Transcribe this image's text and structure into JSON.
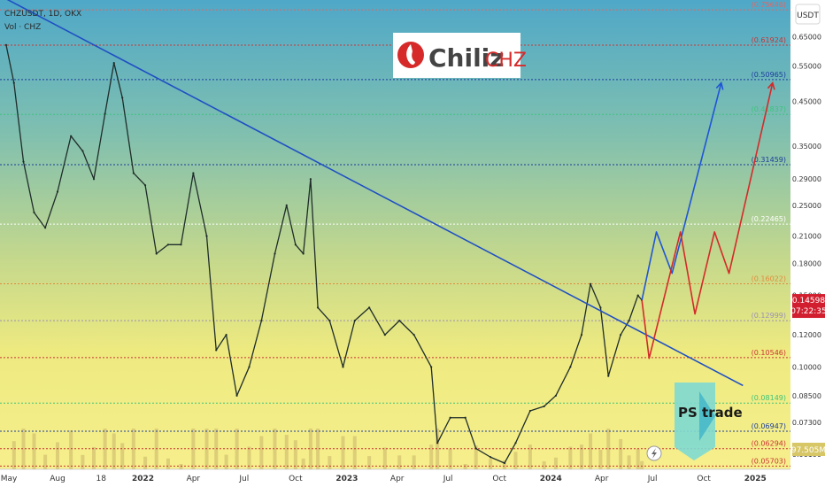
{
  "header": {
    "symbol": "CHZUSDT, 1D, OKX",
    "volume_label": "Vol · CHZ"
  },
  "logo": {
    "brand": "Chiliz",
    "ticker": "CHZ",
    "brand_color": "#d62a2a"
  },
  "currency_button": "USDT",
  "price_axis": {
    "ticks": [
      "0.65000",
      "0.55000",
      "0.45000",
      "0.35000",
      "0.29000",
      "0.25000",
      "0.21000",
      "0.18000",
      "0.15000",
      "0.12000",
      "0.10000",
      "0.08500",
      "0.07300",
      "0.06100"
    ],
    "current_price": "0.14598",
    "countdown": "07:22:35",
    "volume_value": "97.505M"
  },
  "levels": [
    {
      "label": "(0.75646)",
      "value": 0.75646,
      "color": "#e06666",
      "style": "dotted"
    },
    {
      "label": "(0.61924)",
      "value": 0.61924,
      "color": "#cc3333",
      "style": "dotted"
    },
    {
      "label": "(0.50965)",
      "value": 0.50965,
      "color": "#1a3c9c",
      "style": "dotted"
    },
    {
      "label": "(0.41837)",
      "value": 0.41837,
      "color": "#3cc47c",
      "style": "dotted"
    },
    {
      "label": "(0.31459)",
      "value": 0.31459,
      "color": "#1a3c9c",
      "style": "dotted"
    },
    {
      "label": "(0.22465)",
      "value": 0.22465,
      "color": "#ffffff",
      "style": "dotted"
    },
    {
      "label": "(0.16022)",
      "value": 0.16022,
      "color": "#e08a3c",
      "style": "dotted"
    },
    {
      "label": "(0.12999)",
      "value": 0.12999,
      "color": "#9a8fb4",
      "style": "dotted"
    },
    {
      "label": "(0.10546)",
      "value": 0.10546,
      "color": "#cc3333",
      "style": "dotted"
    },
    {
      "label": "(0.08149)",
      "value": 0.08149,
      "color": "#3cc47c",
      "style": "dotted"
    },
    {
      "label": "(0.06947)",
      "value": 0.06947,
      "color": "#1a3c9c",
      "style": "dotted"
    },
    {
      "label": "(0.06294)",
      "value": 0.06294,
      "color": "#cc3333",
      "style": "dotted"
    },
    {
      "label": "(0.05703)",
      "value": 0.05703,
      "color": "#cc3333",
      "style": "dotted"
    }
  ],
  "time_axis": {
    "labels": [
      "May",
      "Aug",
      "18",
      "2022",
      "Apr",
      "Jul",
      "Oct",
      "2023",
      "Apr",
      "Jul",
      "Oct",
      "2024",
      "Apr",
      "Jul",
      "Oct",
      "2025"
    ]
  },
  "watermark": {
    "text": "PS trade"
  },
  "chart_data": {
    "type": "line",
    "title": "CHZUSDT, 1D, OKX",
    "xlabel": "",
    "ylabel": "",
    "y_scale": "log",
    "ylim": [
      0.056,
      0.8
    ],
    "x_ticks": [
      "May",
      "Aug",
      "18",
      "2022",
      "Apr",
      "Jul",
      "Oct",
      "2023",
      "Apr",
      "Jul",
      "Oct",
      "2024",
      "Apr",
      "Jul",
      "Oct",
      "2025"
    ],
    "series": [
      {
        "name": "",
        "role": "price",
        "color": "#1f2d2a",
        "points": [
          [
            "2021-05-01",
            0.62
          ],
          [
            "2021-05-15",
            0.5
          ],
          [
            "2021-06-01",
            0.32
          ],
          [
            "2021-06-20",
            0.24
          ],
          [
            "2021-07-10",
            0.22
          ],
          [
            "2021-08-01",
            0.27
          ],
          [
            "2021-08-25",
            0.37
          ],
          [
            "2021-09-15",
            0.34
          ],
          [
            "2021-10-05",
            0.29
          ],
          [
            "2021-10-25",
            0.42
          ],
          [
            "2021-11-10",
            0.56
          ],
          [
            "2021-11-25",
            0.46
          ],
          [
            "2021-12-15",
            0.3
          ],
          [
            "2022-01-05",
            0.28
          ],
          [
            "2022-01-25",
            0.19
          ],
          [
            "2022-02-15",
            0.2
          ],
          [
            "2022-03-10",
            0.2
          ],
          [
            "2022-04-01",
            0.3
          ],
          [
            "2022-04-25",
            0.21
          ],
          [
            "2022-05-12",
            0.11
          ],
          [
            "2022-05-30",
            0.12
          ],
          [
            "2022-06-18",
            0.085
          ],
          [
            "2022-07-10",
            0.1
          ],
          [
            "2022-08-01",
            0.13
          ],
          [
            "2022-08-25",
            0.19
          ],
          [
            "2022-09-15",
            0.25
          ],
          [
            "2022-10-01",
            0.2
          ],
          [
            "2022-10-15",
            0.19
          ],
          [
            "2022-10-28",
            0.29
          ],
          [
            "2022-11-10",
            0.14
          ],
          [
            "2022-12-01",
            0.13
          ],
          [
            "2022-12-25",
            0.1
          ],
          [
            "2023-01-15",
            0.13
          ],
          [
            "2023-02-10",
            0.14
          ],
          [
            "2023-03-10",
            0.12
          ],
          [
            "2023-04-05",
            0.13
          ],
          [
            "2023-05-01",
            0.12
          ],
          [
            "2023-06-01",
            0.1
          ],
          [
            "2023-06-12",
            0.065
          ],
          [
            "2023-07-05",
            0.075
          ],
          [
            "2023-08-01",
            0.075
          ],
          [
            "2023-08-20",
            0.063
          ],
          [
            "2023-09-15",
            0.06
          ],
          [
            "2023-10-10",
            0.058
          ],
          [
            "2023-10-30",
            0.065
          ],
          [
            "2023-11-25",
            0.078
          ],
          [
            "2023-12-20",
            0.08
          ],
          [
            "2024-01-10",
            0.085
          ],
          [
            "2024-02-05",
            0.1
          ],
          [
            "2024-02-25",
            0.12
          ],
          [
            "2024-03-12",
            0.16
          ],
          [
            "2024-03-30",
            0.14
          ],
          [
            "2024-04-13",
            0.095
          ],
          [
            "2024-05-05",
            0.12
          ],
          [
            "2024-05-20",
            0.13
          ],
          [
            "2024-06-05",
            0.15
          ],
          [
            "2024-06-12",
            0.146
          ]
        ]
      },
      {
        "name": "",
        "role": "trendline",
        "color": "#1f4fc4",
        "points": [
          [
            "2021-04-20",
            0.82
          ],
          [
            "2024-12-10",
            0.09
          ]
        ]
      },
      {
        "name": "",
        "role": "projection-bullish",
        "color": "#1f55d6",
        "points": [
          [
            "2024-06-12",
            0.146
          ],
          [
            "2024-07-08",
            0.215
          ],
          [
            "2024-08-05",
            0.17
          ],
          [
            "2024-11-01",
            0.5
          ]
        ]
      },
      {
        "name": "",
        "role": "projection-alternate",
        "color": "#d42a2a",
        "points": [
          [
            "2024-06-12",
            0.146
          ],
          [
            "2024-06-25",
            0.105
          ],
          [
            "2024-08-20",
            0.215
          ],
          [
            "2024-09-15",
            0.135
          ],
          [
            "2024-10-20",
            0.215
          ],
          [
            "2024-11-15",
            0.17
          ],
          [
            "2025-02-01",
            0.5
          ]
        ]
      }
    ],
    "volume": {
      "label": "Vol · CHZ",
      "last": "97.505M",
      "color": "#c8b36a"
    },
    "right_axis_ticks": [
      0.65,
      0.55,
      0.45,
      0.35,
      0.29,
      0.25,
      0.21,
      0.18,
      0.15,
      0.12,
      0.1,
      0.085,
      0.073,
      0.061
    ],
    "grid": false,
    "legend": "none"
  }
}
